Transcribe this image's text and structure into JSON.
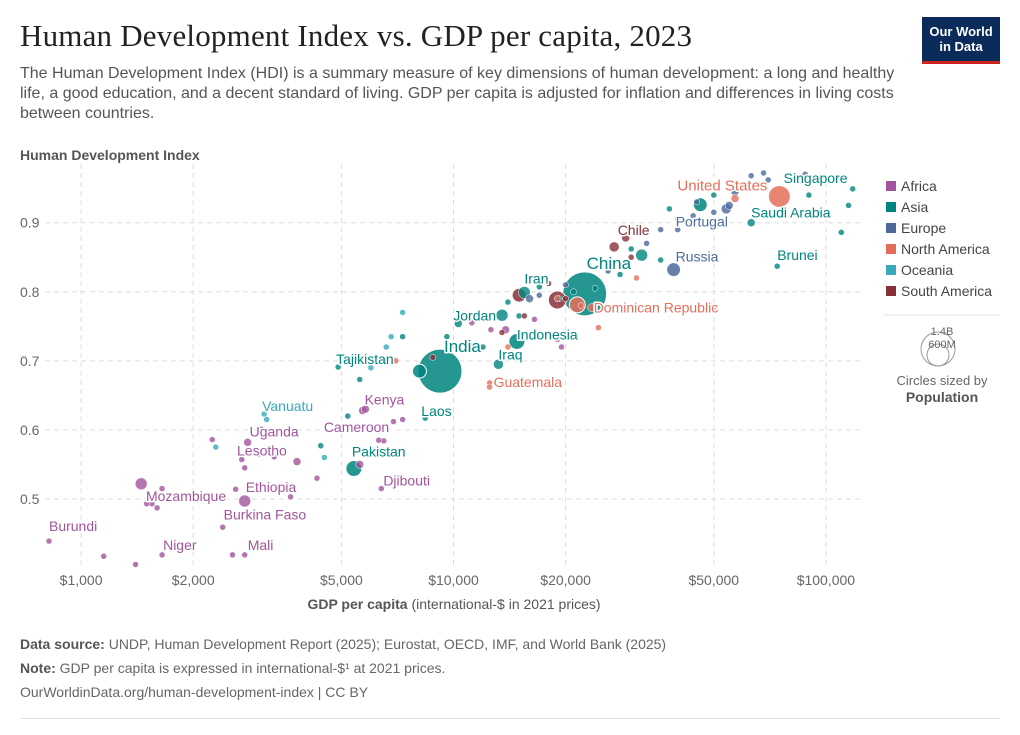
{
  "header": {
    "title": "Human Development Index vs. GDP per capita, 2023",
    "subtitle": "The Human Development Index (HDI) is a summary measure of key dimensions of human development: a long and healthy life, a good education, and a decent standard of living. GDP per capita is adjusted for inflation and differences in living costs between countries.",
    "logo_line1": "Our World",
    "logo_line2": "in Data"
  },
  "colors": {
    "Africa": "#a2559c",
    "Asia": "#00847e",
    "Europe": "#4c6a9c",
    "North America": "#e56e5a",
    "Oceania": "#38aaba",
    "South America": "#883039"
  },
  "chart_data": {
    "type": "scatter",
    "ylabel": "Human Development Index",
    "xlabel_bold": "GDP per capita",
    "xlabel_rest": "(international-$ in 2021 prices)",
    "x_scale": "log",
    "xlim": [
      800,
      125000
    ],
    "ylim": [
      0.4,
      0.985
    ],
    "x_ticks": [
      {
        "value": 1000,
        "label": "$1,000"
      },
      {
        "value": 2000,
        "label": "$2,000"
      },
      {
        "value": 5000,
        "label": "$5,000"
      },
      {
        "value": 10000,
        "label": "$10,000"
      },
      {
        "value": 20000,
        "label": "$20,000"
      },
      {
        "value": 50000,
        "label": "$50,000"
      },
      {
        "value": 100000,
        "label": "$100,000"
      }
    ],
    "y_ticks": [
      {
        "value": 0.5,
        "label": "0.5"
      },
      {
        "value": 0.6,
        "label": "0.6"
      },
      {
        "value": 0.7,
        "label": "0.7"
      },
      {
        "value": 0.8,
        "label": "0.8"
      },
      {
        "value": 0.9,
        "label": "0.9"
      }
    ],
    "grid": true,
    "legend_position": "right",
    "legend": [
      "Africa",
      "Asia",
      "Europe",
      "North America",
      "Oceania",
      "South America"
    ],
    "size_legend": {
      "large_label": "1.4B",
      "small_label": "600M",
      "caption": "Circles sized by",
      "caption_bold": "Population"
    },
    "points": [
      {
        "name": "United States",
        "x": 75000,
        "y": 0.938,
        "r": 11,
        "continent": "North America",
        "label": true,
        "label_dx": -102,
        "label_dy": -6,
        "fs": 15
      },
      {
        "name": "Singapore",
        "x": 118000,
        "y": 0.949,
        "r": 3,
        "continent": "Asia",
        "label": true,
        "label_dx": -69,
        "label_dy": -6
      },
      {
        "name": "Saudi Arabia",
        "x": 63000,
        "y": 0.9,
        "r": 4,
        "continent": "Asia",
        "label": true,
        "label_dx": 0,
        "label_dy": -5
      },
      {
        "name": "Portugal",
        "x": 40000,
        "y": 0.89,
        "r": 3,
        "continent": "Europe",
        "label": true,
        "label_dx": -2,
        "label_dy": -3
      },
      {
        "name": "Chile",
        "x": 29000,
        "y": 0.878,
        "r": 4,
        "continent": "South America",
        "label": true,
        "label_dx": -8,
        "label_dy": -3
      },
      {
        "name": "Brunei",
        "x": 74000,
        "y": 0.837,
        "r": 3,
        "continent": "Asia",
        "label": true,
        "label_dx": 0,
        "label_dy": -6
      },
      {
        "name": "Russia",
        "x": 39000,
        "y": 0.832,
        "r": 7,
        "continent": "Europe",
        "label": true,
        "label_dx": 2,
        "label_dy": -8
      },
      {
        "name": "China",
        "x": 22500,
        "y": 0.797,
        "r": 22,
        "continent": "Asia",
        "label": true,
        "label_dx": 2,
        "label_dy": -25,
        "fs": 17
      },
      {
        "name": "Iran",
        "x": 15500,
        "y": 0.799,
        "r": 6,
        "continent": "Asia",
        "label": true,
        "label_dx": 0,
        "label_dy": -9
      },
      {
        "name": "Dominican Republic",
        "x": 23500,
        "y": 0.777,
        "r": 4,
        "continent": "North America",
        "label": true,
        "label_dx": 2,
        "label_dy": 5
      },
      {
        "name": "Jordan",
        "x": 10300,
        "y": 0.754,
        "r": 4,
        "continent": "Asia",
        "label": true,
        "label_dx": -5,
        "label_dy": -3
      },
      {
        "name": "Indonesia",
        "x": 14800,
        "y": 0.728,
        "r": 8,
        "continent": "Asia",
        "label": true,
        "label_dx": 0,
        "label_dy": -2
      },
      {
        "name": "India",
        "x": 9200,
        "y": 0.685,
        "r": 22,
        "continent": "Asia",
        "label": true,
        "label_dx": 4,
        "label_dy": -19,
        "fs": 17
      },
      {
        "name": "Iraq",
        "x": 13200,
        "y": 0.695,
        "r": 5,
        "continent": "Asia",
        "label": true,
        "label_dx": 0,
        "label_dy": -5
      },
      {
        "name": "Guatemala",
        "x": 12500,
        "y": 0.668,
        "r": 3,
        "continent": "North America",
        "label": true,
        "label_dx": 4,
        "label_dy": 4
      },
      {
        "name": "Tajikistan",
        "x": 4900,
        "y": 0.691,
        "r": 3,
        "continent": "Asia",
        "label": true,
        "label_dx": -2,
        "label_dy": -3
      },
      {
        "name": "Laos",
        "x": 8400,
        "y": 0.617,
        "r": 3,
        "continent": "Asia",
        "label": true,
        "label_dx": -4,
        "label_dy": -2
      },
      {
        "name": "Vanuatu",
        "x": 3100,
        "y": 0.623,
        "r": 3,
        "continent": "Oceania",
        "label": true,
        "label_dx": -2,
        "label_dy": -3
      },
      {
        "name": "Kenya",
        "x": 5700,
        "y": 0.628,
        "r": 4,
        "continent": "Africa",
        "label": true,
        "label_dx": 2,
        "label_dy": -6
      },
      {
        "name": "Uganda",
        "x": 2800,
        "y": 0.582,
        "r": 4,
        "continent": "Africa",
        "label": true,
        "label_dx": 2,
        "label_dy": -6
      },
      {
        "name": "Cameroon",
        "x": 6500,
        "y": 0.584,
        "r": 3,
        "continent": "Africa",
        "label": true,
        "label_dx": -60,
        "label_dy": -9
      },
      {
        "name": "Lesotho",
        "x": 3800,
        "y": 0.554,
        "r": 4,
        "continent": "Africa",
        "label": true,
        "label_dx": -60,
        "label_dy": -6
      },
      {
        "name": "Pakistan",
        "x": 5400,
        "y": 0.544,
        "r": 8,
        "continent": "Asia",
        "label": true,
        "label_dx": -2,
        "label_dy": -12
      },
      {
        "name": "Djibouti",
        "x": 6400,
        "y": 0.515,
        "r": 3,
        "continent": "Africa",
        "label": true,
        "label_dx": 2,
        "label_dy": -3
      },
      {
        "name": "Mozambique",
        "x": 1550,
        "y": 0.493,
        "r": 3,
        "continent": "Africa",
        "label": true,
        "label_dx": -6,
        "label_dy": -3
      },
      {
        "name": "Ethiopia",
        "x": 2750,
        "y": 0.497,
        "r": 6,
        "continent": "Africa",
        "label": true,
        "label_dx": 1,
        "label_dy": -9
      },
      {
        "name": "Burkina Faso",
        "x": 2400,
        "y": 0.459,
        "r": 3,
        "continent": "Africa",
        "label": true,
        "label_dx": 1,
        "label_dy": -8
      },
      {
        "name": "Burundi",
        "x": 820,
        "y": 0.439,
        "r": 3,
        "continent": "Africa",
        "label": true,
        "label_dx": 0,
        "label_dy": -10
      },
      {
        "name": "Niger",
        "x": 1650,
        "y": 0.419,
        "r": 3,
        "continent": "Africa",
        "label": true,
        "label_dx": 1,
        "label_dy": -5
      },
      {
        "name": "Mali",
        "x": 2750,
        "y": 0.419,
        "r": 3,
        "continent": "Africa",
        "label": true,
        "label_dx": 3,
        "label_dy": -5
      },
      {
        "continent": "Africa",
        "x": 1450,
        "y": 0.522,
        "r": 6
      },
      {
        "continent": "Africa",
        "x": 1650,
        "y": 0.515,
        "r": 3
      },
      {
        "continent": "Africa",
        "x": 1500,
        "y": 0.493,
        "r": 3
      },
      {
        "continent": "Africa",
        "x": 1600,
        "y": 0.487,
        "r": 3
      },
      {
        "continent": "Africa",
        "x": 1150,
        "y": 0.417,
        "r": 3
      },
      {
        "continent": "Africa",
        "x": 1400,
        "y": 0.405,
        "r": 3
      },
      {
        "continent": "Africa",
        "x": 2550,
        "y": 0.419,
        "r": 3
      },
      {
        "continent": "Africa",
        "x": 2600,
        "y": 0.514,
        "r": 3
      },
      {
        "continent": "Africa",
        "x": 2900,
        "y": 0.52,
        "r": 3
      },
      {
        "continent": "Africa",
        "x": 3650,
        "y": 0.503,
        "r": 3
      },
      {
        "continent": "Africa",
        "x": 2750,
        "y": 0.545,
        "r": 3
      },
      {
        "continent": "Africa",
        "x": 3000,
        "y": 0.565,
        "r": 3
      },
      {
        "continent": "Africa",
        "x": 2700,
        "y": 0.557,
        "r": 3
      },
      {
        "continent": "Africa",
        "x": 3300,
        "y": 0.561,
        "r": 3
      },
      {
        "continent": "Africa",
        "x": 2250,
        "y": 0.586,
        "r": 3
      },
      {
        "continent": "Africa",
        "x": 3050,
        "y": 0.601,
        "r": 3
      },
      {
        "continent": "Africa",
        "x": 4300,
        "y": 0.53,
        "r": 3
      },
      {
        "continent": "Africa",
        "x": 5600,
        "y": 0.55,
        "r": 4
      },
      {
        "continent": "Africa",
        "x": 6300,
        "y": 0.585,
        "r": 3
      },
      {
        "continent": "Africa",
        "x": 5500,
        "y": 0.606,
        "r": 3
      },
      {
        "continent": "Africa",
        "x": 5800,
        "y": 0.63,
        "r": 4
      },
      {
        "continent": "Africa",
        "x": 6900,
        "y": 0.612,
        "r": 3
      },
      {
        "continent": "Africa",
        "x": 7300,
        "y": 0.615,
        "r": 3
      },
      {
        "continent": "Africa",
        "x": 11200,
        "y": 0.755,
        "r": 3
      },
      {
        "continent": "Africa",
        "x": 12600,
        "y": 0.745,
        "r": 3
      },
      {
        "continent": "Africa",
        "x": 13800,
        "y": 0.745,
        "r": 4
      },
      {
        "continent": "Africa",
        "x": 19000,
        "y": 0.731,
        "r": 3
      },
      {
        "continent": "Africa",
        "x": 19500,
        "y": 0.72,
        "r": 3
      },
      {
        "continent": "Africa",
        "x": 16500,
        "y": 0.76,
        "r": 3
      },
      {
        "continent": "Asia",
        "x": 4400,
        "y": 0.577,
        "r": 3
      },
      {
        "continent": "Asia",
        "x": 5200,
        "y": 0.62,
        "r": 3
      },
      {
        "continent": "Asia",
        "x": 5600,
        "y": 0.673,
        "r": 3
      },
      {
        "continent": "Asia",
        "x": 7300,
        "y": 0.735,
        "r": 3
      },
      {
        "continent": "Asia",
        "x": 9600,
        "y": 0.735,
        "r": 3
      },
      {
        "continent": "Asia",
        "x": 8100,
        "y": 0.685,
        "r": 7
      },
      {
        "continent": "Asia",
        "x": 12000,
        "y": 0.72,
        "r": 3
      },
      {
        "continent": "Asia",
        "x": 13500,
        "y": 0.766,
        "r": 6
      },
      {
        "continent": "Asia",
        "x": 15000,
        "y": 0.765,
        "r": 3
      },
      {
        "continent": "Asia",
        "x": 14000,
        "y": 0.785,
        "r": 3
      },
      {
        "continent": "Asia",
        "x": 17000,
        "y": 0.807,
        "r": 3
      },
      {
        "continent": "Asia",
        "x": 19200,
        "y": 0.79,
        "r": 3
      },
      {
        "continent": "Asia",
        "x": 21000,
        "y": 0.8,
        "r": 3
      },
      {
        "continent": "Asia",
        "x": 24000,
        "y": 0.805,
        "r": 3
      },
      {
        "continent": "Asia",
        "x": 28000,
        "y": 0.825,
        "r": 3
      },
      {
        "continent": "Asia",
        "x": 32000,
        "y": 0.853,
        "r": 6
      },
      {
        "continent": "Asia",
        "x": 36000,
        "y": 0.846,
        "r": 3
      },
      {
        "continent": "Asia",
        "x": 46000,
        "y": 0.926,
        "r": 7
      },
      {
        "continent": "Asia",
        "x": 50000,
        "y": 0.94,
        "r": 3
      },
      {
        "continent": "Asia",
        "x": 90000,
        "y": 0.94,
        "r": 3
      },
      {
        "continent": "Asia",
        "x": 115000,
        "y": 0.925,
        "r": 3
      },
      {
        "continent": "Asia",
        "x": 110000,
        "y": 0.886,
        "r": 3
      },
      {
        "continent": "Asia",
        "x": 38000,
        "y": 0.92,
        "r": 3
      },
      {
        "continent": "Asia",
        "x": 30000,
        "y": 0.862,
        "r": 3
      },
      {
        "continent": "Europe",
        "x": 16000,
        "y": 0.79,
        "r": 4
      },
      {
        "continent": "Europe",
        "x": 17000,
        "y": 0.795,
        "r": 3
      },
      {
        "continent": "Europe",
        "x": 20000,
        "y": 0.81,
        "r": 3
      },
      {
        "continent": "Europe",
        "x": 26000,
        "y": 0.83,
        "r": 3
      },
      {
        "continent": "Europe",
        "x": 33000,
        "y": 0.87,
        "r": 3
      },
      {
        "continent": "Europe",
        "x": 36000,
        "y": 0.89,
        "r": 3
      },
      {
        "continent": "Europe",
        "x": 40000,
        "y": 0.905,
        "r": 3
      },
      {
        "continent": "Europe",
        "x": 44000,
        "y": 0.91,
        "r": 3
      },
      {
        "continent": "Europe",
        "x": 50000,
        "y": 0.915,
        "r": 3
      },
      {
        "continent": "Europe",
        "x": 54000,
        "y": 0.92,
        "r": 5
      },
      {
        "continent": "Europe",
        "x": 55000,
        "y": 0.925,
        "r": 4
      },
      {
        "continent": "Europe",
        "x": 57000,
        "y": 0.945,
        "r": 4
      },
      {
        "continent": "Europe",
        "x": 60000,
        "y": 0.95,
        "r": 3
      },
      {
        "continent": "Europe",
        "x": 66000,
        "y": 0.955,
        "r": 3
      },
      {
        "continent": "Europe",
        "x": 70000,
        "y": 0.962,
        "r": 3
      },
      {
        "continent": "Europe",
        "x": 80000,
        "y": 0.96,
        "r": 3
      },
      {
        "continent": "Europe",
        "x": 88000,
        "y": 0.97,
        "r": 3
      },
      {
        "continent": "Europe",
        "x": 63000,
        "y": 0.968,
        "r": 3
      },
      {
        "continent": "Europe",
        "x": 45000,
        "y": 0.93,
        "r": 3
      },
      {
        "continent": "Europe",
        "x": 68000,
        "y": 0.972,
        "r": 3
      },
      {
        "continent": "North America",
        "x": 7000,
        "y": 0.7,
        "r": 3
      },
      {
        "continent": "North America",
        "x": 12500,
        "y": 0.662,
        "r": 3
      },
      {
        "continent": "North America",
        "x": 14000,
        "y": 0.72,
        "r": 3
      },
      {
        "continent": "North America",
        "x": 17500,
        "y": 0.735,
        "r": 3
      },
      {
        "continent": "North America",
        "x": 19000,
        "y": 0.79,
        "r": 3
      },
      {
        "continent": "North America",
        "x": 22000,
        "y": 0.78,
        "r": 3
      },
      {
        "continent": "North America",
        "x": 24500,
        "y": 0.748,
        "r": 3
      },
      {
        "continent": "North America",
        "x": 21500,
        "y": 0.781,
        "r": 8
      },
      {
        "continent": "North America",
        "x": 31000,
        "y": 0.82,
        "r": 3
      },
      {
        "continent": "North America",
        "x": 57000,
        "y": 0.935,
        "r": 4
      },
      {
        "continent": "Oceania",
        "x": 2300,
        "y": 0.575,
        "r": 3
      },
      {
        "continent": "Oceania",
        "x": 3150,
        "y": 0.615,
        "r": 3
      },
      {
        "continent": "Oceania",
        "x": 4500,
        "y": 0.56,
        "r": 3
      },
      {
        "continent": "Oceania",
        "x": 6000,
        "y": 0.69,
        "r": 3
      },
      {
        "continent": "Oceania",
        "x": 6600,
        "y": 0.72,
        "r": 3
      },
      {
        "continent": "Oceania",
        "x": 6800,
        "y": 0.735,
        "r": 3
      },
      {
        "continent": "Oceania",
        "x": 7300,
        "y": 0.77,
        "r": 3
      },
      {
        "continent": "South America",
        "x": 8800,
        "y": 0.705,
        "r": 3
      },
      {
        "continent": "South America",
        "x": 13500,
        "y": 0.741,
        "r": 3
      },
      {
        "continent": "South America",
        "x": 15500,
        "y": 0.765,
        "r": 3
      },
      {
        "continent": "South America",
        "x": 15000,
        "y": 0.795,
        "r": 7
      },
      {
        "continent": "South America",
        "x": 18000,
        "y": 0.812,
        "r": 3
      },
      {
        "continent": "South America",
        "x": 19000,
        "y": 0.788,
        "r": 9
      },
      {
        "continent": "South America",
        "x": 20000,
        "y": 0.79,
        "r": 3
      },
      {
        "continent": "South America",
        "x": 27000,
        "y": 0.865,
        "r": 5
      },
      {
        "continent": "South America",
        "x": 30000,
        "y": 0.85,
        "r": 3
      },
      {
        "continent": "South America",
        "x": 50000,
        "y": 0.778,
        "r": 3
      }
    ]
  },
  "footer": {
    "source_label": "Data source:",
    "source_text": "UNDP, Human Development Report (2025); Eurostat, OECD, IMF, and World Bank (2025)",
    "note_label": "Note:",
    "note_text": "GDP per capita is expressed in international-$¹ at 2021 prices.",
    "url_text": "OurWorldinData.org/human-development-index | CC BY"
  }
}
